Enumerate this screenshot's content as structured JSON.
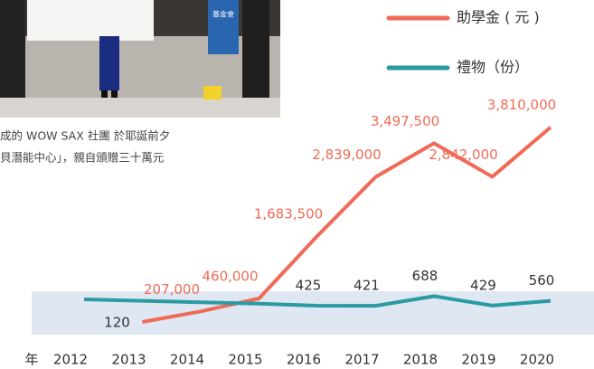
{
  "photo_text": "基金會",
  "caption": [
    "成的 WOW SAX 社團 於耶誕前夕",
    "貝潛能中心」，親自頒贈三十萬元"
  ],
  "chart_data": {
    "type": "line",
    "x_label": "年",
    "categories": [
      "2012",
      "2013",
      "2014",
      "2015",
      "2016",
      "2017",
      "2018",
      "2019",
      "2020"
    ],
    "series": [
      {
        "name": "助學金 ( 元 )",
        "color": "#ef6b57",
        "values": [
          null,
          120,
          207000,
          460000,
          1683500,
          2839000,
          3497500,
          2842000,
          3810000
        ],
        "value_labels": [
          null,
          "120",
          "207,000",
          "460,000",
          "1,683,500",
          "2,839,000",
          "3,497,500",
          "2,842,000",
          "3,810,000"
        ]
      },
      {
        "name": "禮物（份）",
        "color": "#2b9aa1",
        "axis": "y2",
        "values": [
          600,
          560,
          520,
          480,
          425,
          421,
          688,
          429,
          560
        ],
        "value_labels": [
          null,
          null,
          null,
          null,
          "425",
          "421",
          "688",
          "429",
          "560"
        ]
      }
    ],
    "ylim": [
      0,
      4000000
    ],
    "y2lim": [
      0,
      1000
    ]
  }
}
